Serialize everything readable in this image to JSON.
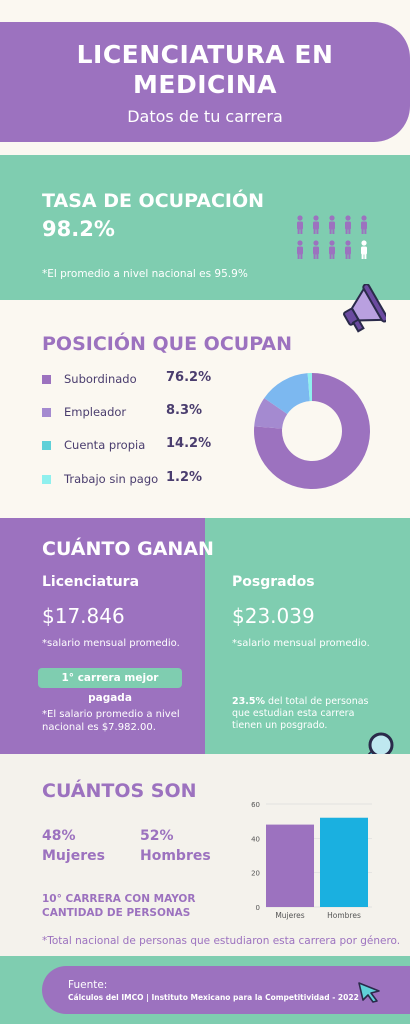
{
  "header": {
    "title_line1": "LICENCIATURA EN",
    "title_line2": "MEDICINA",
    "subtitle": "Datos de tu carrera"
  },
  "occupancy": {
    "title": "TASA DE OCUPACIÓN",
    "value": "98.2%",
    "note": "*El promedio a nivel nacional es 95.9%",
    "people_total": 10,
    "people_filled": 9
  },
  "position": {
    "title": "POSICIÓN QUE OCUPAN",
    "items": [
      {
        "label": "Subordinado",
        "value": "76.2%",
        "color": "#9c72bf"
      },
      {
        "label": "Empleador",
        "value": "8.3%",
        "color": "#a48ad0"
      },
      {
        "label": "Cuenta propia",
        "value": "14.2%",
        "color": "#5fd0d8"
      },
      {
        "label": "Trabajo sin pago",
        "value": "1.2%",
        "color": "#8ff0ee"
      }
    ],
    "chart_data": {
      "type": "pie",
      "categories": [
        "Subordinado",
        "Empleador",
        "Cuenta propia",
        "Trabajo sin pago"
      ],
      "values": [
        76.2,
        8.3,
        14.2,
        1.2
      ],
      "colors": [
        "#9c72bf",
        "#a48ad0",
        "#7cb8f0",
        "#8ff0ee"
      ]
    }
  },
  "earnings": {
    "title": "CUÁNTO GANAN",
    "licenciatura": {
      "heading": "Licenciatura",
      "value": "$17.846",
      "note": "*salario mensual promedio."
    },
    "posgrados": {
      "heading": "Posgrados",
      "value": "$23.039",
      "note": "*salario mensual promedio."
    },
    "badge": "1° carrera mejor pagada",
    "national_note": "*El salario promedio a nivel nacional es $7.982.00.",
    "posgrado_pct": "23.5%",
    "posgrado_text": " del total de personas que estudian esta carrera tienen un posgrado."
  },
  "count": {
    "title": "CUÁNTOS SON",
    "women_pct": "48%",
    "women_label": "Mujeres",
    "men_pct": "52%",
    "men_label": "Hombres",
    "rank_line1": "10° CARRERA CON MAYOR",
    "rank_line2": "CANTIDAD DE PERSONAS",
    "note": "*Total nacional de personas que estudiaron esta carrera por género.",
    "chart_data": {
      "type": "bar",
      "categories": [
        "Mujeres",
        "Hombres"
      ],
      "values": [
        48,
        52
      ],
      "ylim": [
        0,
        60
      ],
      "yticks": [
        0,
        20,
        40,
        60
      ],
      "colors": [
        "#9c72bf",
        "#1ab0e0"
      ]
    }
  },
  "footer": {
    "heading": "Fuente:",
    "text": "Cálculos del IMCO | Instituto Mexicano para la Competitividad - 2022"
  }
}
